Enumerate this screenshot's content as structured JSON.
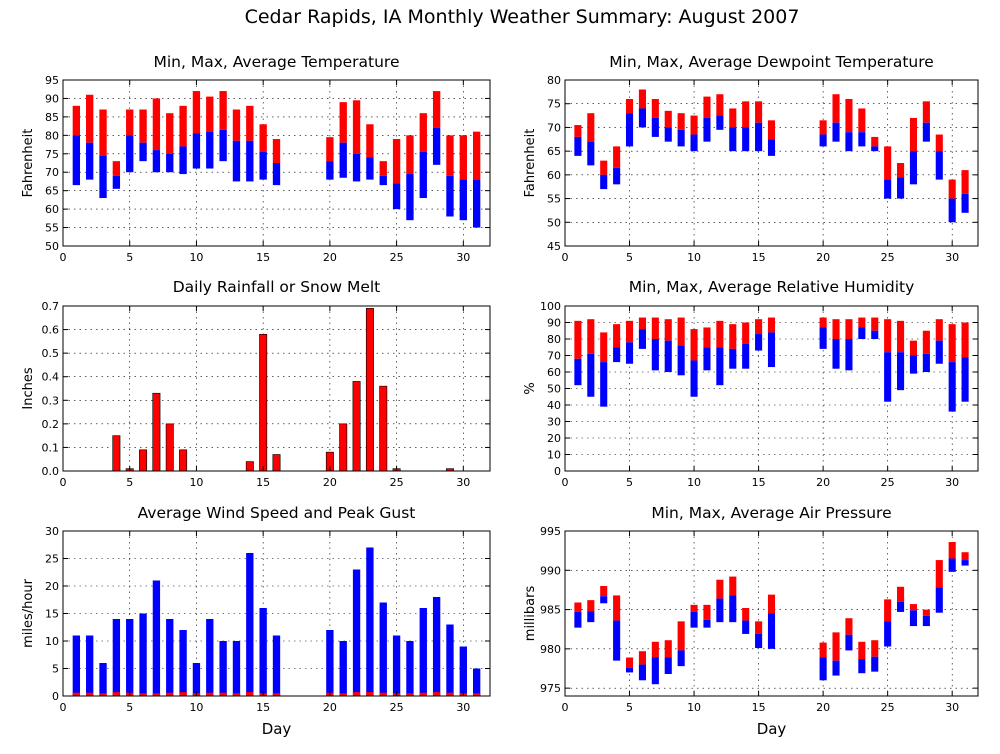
{
  "page": {
    "title": "Cedar Rapids, IA Monthly Weather Summary: August 2007",
    "colors": {
      "min_series": "#0000ff",
      "max_series": "#ff0000",
      "precip": "#ff0000",
      "wind_avg": "#0000ff",
      "wind_gust": "#ff0000"
    }
  },
  "chart_data": [
    {
      "id": "temperature",
      "type": "bar",
      "title": "Min, Max, Average Temperature",
      "ylabel": "Fahrenheit",
      "xlabel": "",
      "ylim": [
        50,
        95
      ],
      "yticks": [
        50,
        55,
        60,
        65,
        70,
        75,
        80,
        85,
        90,
        95
      ],
      "xlim": [
        0,
        32
      ],
      "xticks": [
        0,
        5,
        10,
        15,
        20,
        25,
        30
      ],
      "grid": true,
      "style": "floating-minmax-avg",
      "days": [
        1,
        2,
        3,
        4,
        5,
        6,
        7,
        8,
        9,
        10,
        11,
        12,
        13,
        14,
        15,
        16,
        20,
        21,
        22,
        23,
        24,
        25,
        26,
        27,
        28,
        29,
        30,
        31
      ],
      "min": [
        66.5,
        68,
        63,
        65.5,
        70,
        73,
        70,
        70,
        69.5,
        71,
        71,
        73,
        67.5,
        67.5,
        68,
        66.5,
        68,
        68.5,
        67.5,
        68,
        66.5,
        60,
        57,
        63,
        72,
        58,
        57,
        55
      ],
      "avg": [
        80,
        78,
        74.5,
        69,
        80,
        78,
        76,
        75,
        77,
        80.5,
        81,
        81.5,
        78.5,
        78.5,
        75.5,
        72.5,
        73,
        78,
        75,
        74,
        69,
        67,
        69.5,
        75.5,
        82,
        69,
        68,
        68
      ],
      "max": [
        88,
        91,
        87,
        73,
        87,
        87,
        90,
        86,
        88,
        92,
        90.5,
        92,
        87,
        88,
        83,
        79,
        79.5,
        89,
        89.5,
        83,
        73,
        79,
        80,
        86,
        92,
        80,
        80,
        81
      ]
    },
    {
      "id": "dewpoint",
      "type": "bar",
      "title": "Min, Max, Average Dewpoint Temperature",
      "ylabel": "Fahrenheit",
      "xlabel": "",
      "ylim": [
        45,
        80
      ],
      "yticks": [
        45,
        50,
        55,
        60,
        65,
        70,
        75,
        80
      ],
      "xlim": [
        0,
        32
      ],
      "xticks": [
        0,
        5,
        10,
        15,
        20,
        25,
        30
      ],
      "grid": true,
      "style": "floating-minmax-avg",
      "days": [
        1,
        2,
        3,
        4,
        5,
        6,
        7,
        8,
        9,
        10,
        11,
        12,
        13,
        14,
        15,
        16,
        20,
        21,
        22,
        23,
        24,
        25,
        26,
        27,
        28,
        29,
        30,
        31
      ],
      "min": [
        64,
        62,
        57,
        58,
        66,
        70,
        68,
        67,
        66,
        65,
        67,
        69.5,
        65,
        65,
        65,
        64,
        66,
        67,
        65,
        66,
        65,
        55,
        55,
        58,
        67,
        59,
        50,
        52
      ],
      "avg": [
        68,
        67,
        60,
        61.5,
        73,
        74,
        72,
        70,
        69.5,
        68.5,
        72,
        72.5,
        70,
        70,
        71,
        67.5,
        68.5,
        71,
        69,
        69,
        66,
        59,
        59.5,
        65,
        71,
        65,
        55,
        56
      ],
      "max": [
        70.5,
        73,
        63,
        66,
        76,
        78,
        76,
        73.5,
        73,
        72.5,
        76.5,
        77,
        74,
        75.5,
        75.5,
        71.5,
        71.5,
        77,
        76,
        74,
        68,
        66,
        62.5,
        72,
        75.5,
        68.5,
        59,
        61
      ]
    },
    {
      "id": "rainfall",
      "type": "bar",
      "title": "Daily Rainfall or Snow Melt",
      "ylabel": "Inches",
      "xlabel": "",
      "ylim": [
        0,
        0.7
      ],
      "yticks": [
        0.0,
        0.1,
        0.2,
        0.3,
        0.4,
        0.5,
        0.6,
        0.7
      ],
      "ytick_labels": [
        "0.0",
        "0.1",
        "0.2",
        "0.3",
        "0.4",
        "0.5",
        "0.6",
        "0.7"
      ],
      "xlim": [
        0,
        32
      ],
      "xticks": [
        0,
        5,
        10,
        15,
        20,
        25,
        30
      ],
      "grid": true,
      "style": "bar",
      "days": [
        4,
        5,
        6,
        7,
        8,
        9,
        14,
        15,
        16,
        20,
        21,
        22,
        23,
        24,
        25,
        29
      ],
      "values": [
        0.15,
        0.01,
        0.09,
        0.33,
        0.2,
        0.09,
        0.04,
        0.58,
        0.07,
        0.08,
        0.2,
        0.38,
        0.69,
        0.36,
        0.01,
        0.01
      ]
    },
    {
      "id": "humidity",
      "type": "bar",
      "title": "Min, Max, Average Relative Humidity",
      "ylabel": "%",
      "xlabel": "",
      "ylim": [
        0,
        100
      ],
      "yticks": [
        0,
        10,
        20,
        30,
        40,
        50,
        60,
        70,
        80,
        90,
        100
      ],
      "xlim": [
        0,
        32
      ],
      "xticks": [
        0,
        5,
        10,
        15,
        20,
        25,
        30
      ],
      "grid": true,
      "style": "floating-minmax-avg",
      "days": [
        1,
        2,
        3,
        4,
        5,
        6,
        7,
        8,
        9,
        10,
        11,
        12,
        13,
        14,
        15,
        16,
        20,
        21,
        22,
        23,
        24,
        25,
        26,
        27,
        28,
        29,
        30,
        31
      ],
      "min": [
        52,
        45,
        39,
        66,
        65,
        74,
        61,
        60,
        58,
        45,
        61,
        52,
        62,
        62,
        73,
        63,
        74,
        62,
        61,
        80,
        80,
        42,
        49,
        59,
        60,
        65,
        36,
        42
      ],
      "avg": [
        68,
        71,
        66,
        75,
        78,
        86,
        80,
        79,
        76,
        67,
        75,
        75,
        74,
        77,
        83,
        84,
        87,
        80,
        80,
        87,
        85,
        72,
        72,
        70,
        71,
        79,
        66,
        69
      ],
      "max": [
        91,
        92,
        84,
        89,
        91,
        93,
        93,
        92,
        93,
        86,
        87,
        91,
        89,
        90,
        92,
        93,
        93,
        92,
        92,
        93,
        93,
        92,
        91,
        79,
        85,
        92,
        89,
        90
      ]
    },
    {
      "id": "wind",
      "type": "bar",
      "title": "Average Wind Speed and Peak Gust",
      "ylabel": "miles/hour",
      "xlabel": "Day",
      "ylim": [
        0,
        30
      ],
      "yticks": [
        0,
        5,
        10,
        15,
        20,
        25,
        30
      ],
      "xlim": [
        0,
        32
      ],
      "xticks": [
        0,
        5,
        10,
        15,
        20,
        25,
        30
      ],
      "grid": true,
      "style": "wind",
      "days": [
        1,
        2,
        3,
        4,
        5,
        6,
        7,
        8,
        9,
        10,
        11,
        12,
        13,
        14,
        15,
        16,
        20,
        21,
        22,
        23,
        24,
        25,
        26,
        27,
        28,
        29,
        30,
        31
      ],
      "gust": [
        11,
        11,
        6,
        14,
        14,
        15,
        21,
        14,
        12,
        6,
        14,
        10,
        10,
        26,
        16,
        11,
        12,
        10,
        23,
        27,
        17,
        11,
        10,
        16,
        18,
        13,
        9,
        5
      ],
      "avg": [
        0.6,
        0.6,
        0.5,
        0.7,
        0.6,
        0.5,
        0.5,
        0.6,
        0.7,
        0.5,
        0.6,
        0.6,
        0.5,
        0.7,
        0.5,
        0.5,
        0.6,
        0.5,
        0.7,
        0.7,
        0.6,
        0.5,
        0.5,
        0.6,
        0.7,
        0.6,
        0.5,
        0.5
      ]
    },
    {
      "id": "pressure",
      "type": "bar",
      "title": "Min, Max, Average Air Pressure",
      "ylabel": "millibars",
      "xlabel": "Day",
      "ylim": [
        974,
        995
      ],
      "yticks": [
        975,
        980,
        985,
        990,
        995
      ],
      "xlim": [
        0,
        32
      ],
      "xticks": [
        0,
        5,
        10,
        15,
        20,
        25,
        30
      ],
      "grid": true,
      "style": "floating-minmax-avg",
      "days": [
        1,
        2,
        3,
        4,
        5,
        6,
        7,
        8,
        9,
        10,
        11,
        12,
        13,
        14,
        15,
        16,
        20,
        21,
        22,
        23,
        24,
        25,
        26,
        27,
        28,
        29,
        30,
        31
      ],
      "min": [
        982.7,
        983.4,
        985.8,
        978.5,
        977.0,
        976.0,
        975.5,
        976.8,
        977.8,
        982.7,
        982.7,
        983.4,
        983.4,
        981.9,
        980.1,
        980.0,
        976.0,
        976.6,
        979.8,
        976.9,
        977.1,
        980.3,
        984.7,
        982.9,
        982.9,
        984.6,
        989.8,
        990.6
      ],
      "avg": [
        984.7,
        984.8,
        986.7,
        983.6,
        977.6,
        978.0,
        978.9,
        978.9,
        979.8,
        984.7,
        983.7,
        986.4,
        986.8,
        983.6,
        981.9,
        984.5,
        978.9,
        978.5,
        981.8,
        978.7,
        979.0,
        983.5,
        986.0,
        984.9,
        984.2,
        987.8,
        991.5,
        991.3
      ],
      "max": [
        985.9,
        986.2,
        988.0,
        986.8,
        978.9,
        979.7,
        980.9,
        981.1,
        983.5,
        985.6,
        985.6,
        988.8,
        989.2,
        985.2,
        983.5,
        986.9,
        980.8,
        982.1,
        983.9,
        980.9,
        981.1,
        986.3,
        987.9,
        985.7,
        985.0,
        991.3,
        993.6,
        992.3
      ]
    }
  ]
}
